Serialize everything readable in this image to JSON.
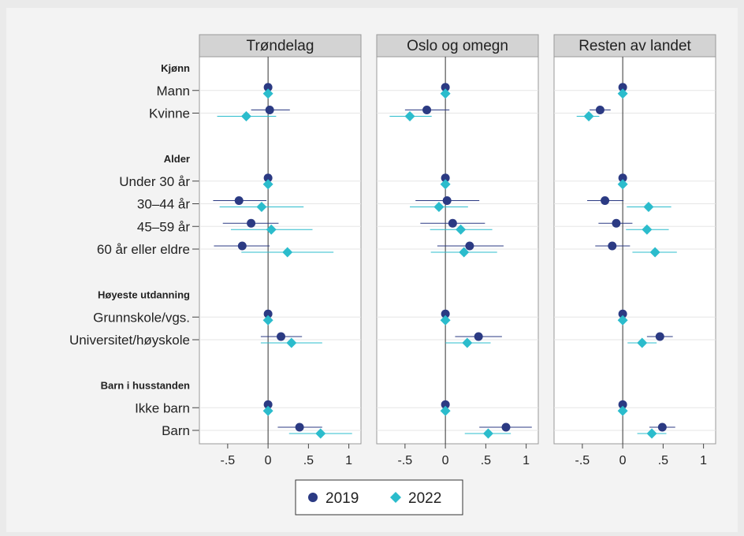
{
  "chart_data": {
    "type": "scatter",
    "subtype": "coefficient-plot",
    "colors": {
      "2019": "#2b3a83",
      "2022": "#2bbccc",
      "background": "#f3f3f3",
      "panel_header": "#d3d3d3",
      "grid": "#e6e6e6"
    },
    "panels": [
      "Trøndelag",
      "Oslo og omegn",
      "Resten av landet"
    ],
    "xlim": [
      -0.85,
      1.15
    ],
    "xticks": [
      -0.5,
      0,
      0.5,
      1
    ],
    "xtick_labels": [
      "-.5",
      "0",
      ".5",
      "1"
    ],
    "rows": [
      {
        "kind": "group",
        "label": "Kjønn"
      },
      {
        "kind": "item",
        "label": "Mann"
      },
      {
        "kind": "item",
        "label": "Kvinne"
      },
      {
        "kind": "spacer"
      },
      {
        "kind": "group",
        "label": "Alder"
      },
      {
        "kind": "item",
        "label": "Under 30 år"
      },
      {
        "kind": "item",
        "label": "30–44 år"
      },
      {
        "kind": "item",
        "label": "45–59 år"
      },
      {
        "kind": "item",
        "label": "60 år eller eldre"
      },
      {
        "kind": "spacer"
      },
      {
        "kind": "group",
        "label": "Høyeste utdanning"
      },
      {
        "kind": "item",
        "label": "Grunnskole/vgs."
      },
      {
        "kind": "item",
        "label": "Universitet/høyskole"
      },
      {
        "kind": "spacer"
      },
      {
        "kind": "group",
        "label": "Barn i husstanden"
      },
      {
        "kind": "item",
        "label": "Ikke barn"
      },
      {
        "kind": "item",
        "label": "Barn"
      }
    ],
    "series": [
      {
        "name": "2019",
        "marker": "circle",
        "panels": [
          {
            "values": [
              0,
              0.02,
              0,
              -0.36,
              -0.21,
              -0.32,
              0,
              0.16,
              0,
              0.39
            ],
            "ci": [
              [
                0,
                0
              ],
              [
                -0.21,
                0.27
              ],
              [
                0,
                0
              ],
              [
                -0.68,
                -0.02
              ],
              [
                -0.56,
                0.13
              ],
              [
                -0.67,
                0.02
              ],
              [
                0,
                0
              ],
              [
                -0.09,
                0.42
              ],
              [
                0,
                0
              ],
              [
                0.12,
                0.67
              ]
            ]
          },
          {
            "values": [
              0,
              -0.23,
              0,
              0.02,
              0.09,
              0.3,
              0,
              0.41,
              0,
              0.75
            ],
            "ci": [
              [
                0,
                0
              ],
              [
                -0.5,
                0.05
              ],
              [
                0,
                0
              ],
              [
                -0.37,
                0.42
              ],
              [
                -0.31,
                0.49
              ],
              [
                -0.1,
                0.72
              ],
              [
                0,
                0
              ],
              [
                0.12,
                0.7
              ],
              [
                0,
                0
              ],
              [
                0.42,
                1.07
              ]
            ]
          },
          {
            "values": [
              0,
              -0.28,
              0,
              -0.22,
              -0.08,
              -0.13,
              0,
              0.46,
              0,
              0.49
            ],
            "ci": [
              [
                0,
                0
              ],
              [
                -0.41,
                -0.15
              ],
              [
                0,
                0
              ],
              [
                -0.44,
                0.01
              ],
              [
                -0.3,
                0.12
              ],
              [
                -0.34,
                0.09
              ],
              [
                0,
                0
              ],
              [
                0.3,
                0.62
              ],
              [
                0,
                0
              ],
              [
                0.33,
                0.65
              ]
            ]
          }
        ]
      },
      {
        "name": "2022",
        "marker": "diamond",
        "panels": [
          {
            "values": [
              0,
              -0.27,
              0,
              -0.08,
              0.04,
              0.24,
              0,
              0.29,
              0,
              0.65
            ],
            "ci": [
              [
                0,
                0
              ],
              [
                -0.63,
                0.1
              ],
              [
                0,
                0
              ],
              [
                -0.6,
                0.44
              ],
              [
                -0.46,
                0.55
              ],
              [
                -0.33,
                0.81
              ],
              [
                0,
                0
              ],
              [
                -0.09,
                0.67
              ],
              [
                0,
                0
              ],
              [
                0.26,
                1.04
              ]
            ]
          },
          {
            "values": [
              0,
              -0.44,
              0,
              -0.08,
              0.19,
              0.23,
              0,
              0.27,
              0,
              0.53
            ],
            "ci": [
              [
                0,
                0
              ],
              [
                -0.69,
                -0.17
              ],
              [
                0,
                0
              ],
              [
                -0.44,
                0.28
              ],
              [
                -0.19,
                0.58
              ],
              [
                -0.18,
                0.64
              ],
              [
                0,
                0
              ],
              [
                0,
                0.56
              ],
              [
                0,
                0
              ],
              [
                0.24,
                0.81
              ]
            ]
          },
          {
            "values": [
              0,
              -0.42,
              0,
              0.32,
              0.3,
              0.4,
              0,
              0.24,
              0,
              0.36
            ],
            "ci": [
              [
                0,
                0
              ],
              [
                -0.57,
                -0.29
              ],
              [
                0,
                0
              ],
              [
                0.05,
                0.6
              ],
              [
                0.04,
                0.57
              ],
              [
                0.12,
                0.67
              ],
              [
                0,
                0
              ],
              [
                0.06,
                0.42
              ],
              [
                0,
                0
              ],
              [
                0.18,
                0.54
              ]
            ]
          }
        ]
      }
    ],
    "legend": {
      "position": "bottom",
      "entries": [
        "2019",
        "2022"
      ]
    }
  }
}
